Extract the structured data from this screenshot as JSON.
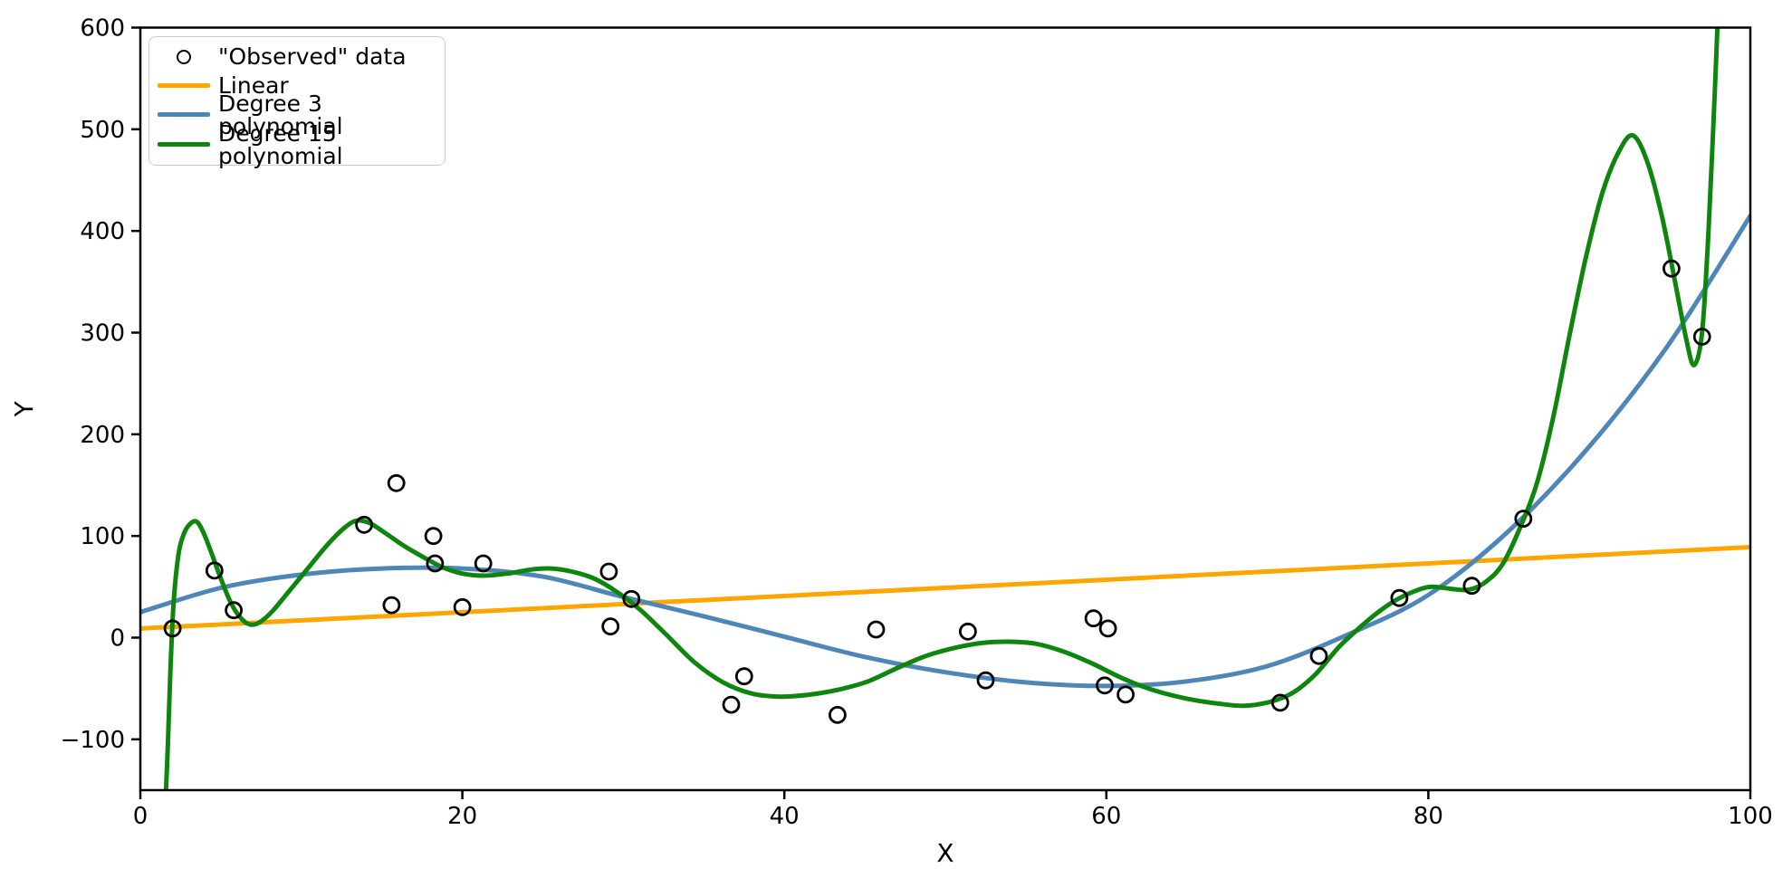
{
  "figure": {
    "xlabel": "X",
    "ylabel": "Y"
  },
  "legend": {
    "items": [
      {
        "label": "\"Observed\" data",
        "marker": "circle",
        "color": "#000000",
        "icon": "open-circle-marker-icon"
      },
      {
        "label": "Linear",
        "marker": "line",
        "color": "#FFA500",
        "icon": "orange-line-swatch-icon"
      },
      {
        "label": "Degree 3 polynomial",
        "marker": "line",
        "color": "#4F86B8",
        "icon": "blue-line-swatch-icon"
      },
      {
        "label": "Degree 15 polynomial",
        "marker": "line",
        "color": "#0E860E",
        "icon": "green-line-swatch-icon"
      }
    ]
  },
  "chart_data": {
    "type": "scatter",
    "title": "",
    "xlabel": "X",
    "ylabel": "Y",
    "xlim": [
      0,
      100
    ],
    "ylim": [
      -150,
      600
    ],
    "xticks": [
      0,
      20,
      40,
      60,
      80,
      100
    ],
    "yticks": [
      -100,
      0,
      100,
      200,
      300,
      400,
      500,
      600
    ],
    "grid": false,
    "legend_position": "upper left",
    "series": [
      {
        "name": "\"Observed\" data",
        "type": "scatter",
        "color": "#000000",
        "points": [
          [
            2.0,
            9
          ],
          [
            4.6,
            66
          ],
          [
            5.8,
            27
          ],
          [
            13.9,
            111
          ],
          [
            15.9,
            152
          ],
          [
            15.6,
            32
          ],
          [
            18.2,
            100
          ],
          [
            18.3,
            73
          ],
          [
            20.0,
            30
          ],
          [
            21.3,
            73
          ],
          [
            29.1,
            65
          ],
          [
            30.5,
            38
          ],
          [
            29.2,
            11
          ],
          [
            36.7,
            -66
          ],
          [
            37.5,
            -38
          ],
          [
            43.3,
            -76
          ],
          [
            45.7,
            8
          ],
          [
            51.4,
            6
          ],
          [
            52.5,
            -42
          ],
          [
            59.2,
            19
          ],
          [
            60.1,
            9
          ],
          [
            59.9,
            -47
          ],
          [
            61.2,
            -56
          ],
          [
            70.8,
            -64
          ],
          [
            73.2,
            -18
          ],
          [
            78.2,
            39
          ],
          [
            82.7,
            51
          ],
          [
            85.9,
            117
          ],
          [
            95.1,
            363
          ],
          [
            97.0,
            296
          ]
        ]
      },
      {
        "name": "Linear",
        "type": "line",
        "color": "#FFA500",
        "points": [
          [
            0,
            9
          ],
          [
            100,
            89
          ]
        ]
      },
      {
        "name": "Degree 3 polynomial",
        "type": "line",
        "color": "#4F86B8",
        "points": [
          [
            0,
            25
          ],
          [
            5,
            49
          ],
          [
            10,
            62
          ],
          [
            15,
            68
          ],
          [
            20,
            68
          ],
          [
            25,
            60
          ],
          [
            30,
            40
          ],
          [
            35,
            21
          ],
          [
            40,
            1
          ],
          [
            45,
            -19
          ],
          [
            50,
            -34
          ],
          [
            55,
            -44
          ],
          [
            60,
            -47.5
          ],
          [
            65,
            -43
          ],
          [
            70,
            -28
          ],
          [
            75,
            3
          ],
          [
            80,
            42
          ],
          [
            85,
            105
          ],
          [
            90,
            188
          ],
          [
            95,
            290
          ],
          [
            100,
            415
          ]
        ]
      },
      {
        "name": "Degree 15 polynomial",
        "type": "line",
        "color": "#0E860E",
        "points": [
          [
            1.55,
            -165
          ],
          [
            1.7,
            -110
          ],
          [
            1.85,
            -40
          ],
          [
            2.05,
            30
          ],
          [
            2.35,
            80
          ],
          [
            2.7,
            102
          ],
          [
            3.1,
            112
          ],
          [
            3.5,
            114
          ],
          [
            3.9,
            104
          ],
          [
            4.4,
            84
          ],
          [
            5.0,
            58
          ],
          [
            5.6,
            35
          ],
          [
            6.2,
            20
          ],
          [
            6.8,
            13
          ],
          [
            7.4,
            15
          ],
          [
            8.2,
            26
          ],
          [
            9.2,
            45
          ],
          [
            10.4,
            68
          ],
          [
            11.6,
            91
          ],
          [
            12.6,
            107
          ],
          [
            13.4,
            115
          ],
          [
            14.2,
            113
          ],
          [
            15.2,
            103
          ],
          [
            16.4,
            90
          ],
          [
            17.6,
            79
          ],
          [
            18.8,
            69
          ],
          [
            20.0,
            63
          ],
          [
            21.3,
            61
          ],
          [
            22.8,
            63
          ],
          [
            24.3,
            67
          ],
          [
            25.5,
            68
          ],
          [
            26.8,
            65
          ],
          [
            28.2,
            58
          ],
          [
            29.6,
            45
          ],
          [
            31.0,
            28
          ],
          [
            32.6,
            4
          ],
          [
            34.4,
            -24
          ],
          [
            36.2,
            -44
          ],
          [
            38.0,
            -55
          ],
          [
            39.8,
            -58
          ],
          [
            41.6,
            -56
          ],
          [
            43.4,
            -51
          ],
          [
            45.2,
            -43
          ],
          [
            47.0,
            -30
          ],
          [
            48.8,
            -18
          ],
          [
            50.6,
            -10
          ],
          [
            52.4,
            -5
          ],
          [
            54.0,
            -4
          ],
          [
            55.6,
            -6
          ],
          [
            57.4,
            -14
          ],
          [
            59.2,
            -26
          ],
          [
            61.0,
            -40
          ],
          [
            63.0,
            -52
          ],
          [
            65.0,
            -60
          ],
          [
            67.0,
            -65
          ],
          [
            68.6,
            -67
          ],
          [
            70.2,
            -63
          ],
          [
            71.6,
            -54
          ],
          [
            73.0,
            -36
          ],
          [
            74.4,
            -10
          ],
          [
            75.6,
            8
          ],
          [
            76.8,
            24
          ],
          [
            78.0,
            37
          ],
          [
            79.2,
            46
          ],
          [
            80.2,
            50
          ],
          [
            81.4,
            48
          ],
          [
            82.4,
            47
          ],
          [
            83.4,
            53
          ],
          [
            84.6,
            72
          ],
          [
            85.8,
            112
          ],
          [
            86.8,
            155
          ],
          [
            87.8,
            220
          ],
          [
            88.8,
            300
          ],
          [
            89.8,
            375
          ],
          [
            90.8,
            437
          ],
          [
            91.8,
            477
          ],
          [
            92.7,
            494
          ],
          [
            93.6,
            468
          ],
          [
            94.5,
            415
          ],
          [
            95.3,
            352
          ],
          [
            96.0,
            295
          ],
          [
            96.5,
            268
          ],
          [
            97.0,
            300
          ],
          [
            97.4,
            400
          ],
          [
            97.8,
            540
          ],
          [
            98.1,
            660
          ]
        ]
      }
    ]
  }
}
